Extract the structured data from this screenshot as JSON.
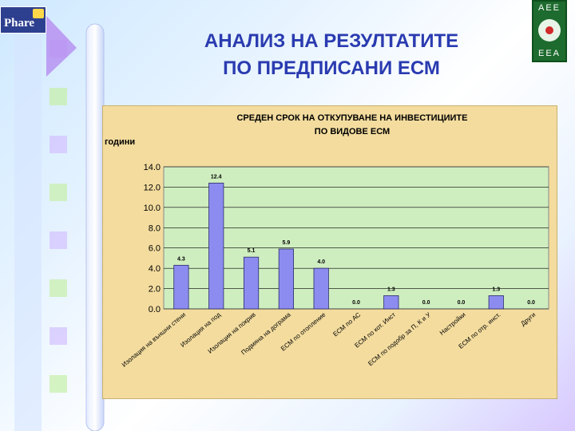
{
  "slide": {
    "title_line1": "АНАЛИЗ НА РЕЗУЛТАТИТЕ",
    "title_line2": "ПО ПРЕДПИСАНИ  ЕСМ"
  },
  "logos": {
    "phare": "Phare",
    "eea_top": "AEE",
    "eea_bottom": "EEA"
  },
  "chart_data": {
    "type": "bar",
    "title_line1": "СРЕДЕН СРОК НА ОТКУПУВАНЕ НА ИНВЕСТИЦИИТЕ",
    "title_line2": "ПО ВИДОВЕ ЕСМ",
    "ylabel": "години",
    "ylim": [
      0,
      14
    ],
    "yticks": [
      "0.0",
      "2.0",
      "4.0",
      "6.0",
      "8.0",
      "10.0",
      "12.0",
      "14.0"
    ],
    "grid": true,
    "categories": [
      "Изолация на външни стени",
      "Изолация на под",
      "Изолация на покрив",
      "Подмяна на дограма",
      "ЕСМ по отопление",
      "ЕСМ по АС",
      "ЕСМ по кот. Инст",
      "ЕСМ по подобр за П, К и У",
      "Настройки",
      "ЕСМ по отр. инст.",
      "Други"
    ],
    "values": [
      4.3,
      12.4,
      5.1,
      5.9,
      4.0,
      0.0,
      1.3,
      0.0,
      0.0,
      1.3,
      0.0
    ],
    "data_labels": [
      "4.3",
      "12.4",
      "5.1",
      "5.9",
      "4.0",
      "0.0",
      "1.3",
      "0.0",
      "0.0",
      "1.3",
      "0.0"
    ],
    "colors": {
      "bar": "#8c8cf0",
      "bar_stroke": "#2a2a6a",
      "plot_bg": "#cfeec0",
      "grid": "#000000"
    }
  }
}
